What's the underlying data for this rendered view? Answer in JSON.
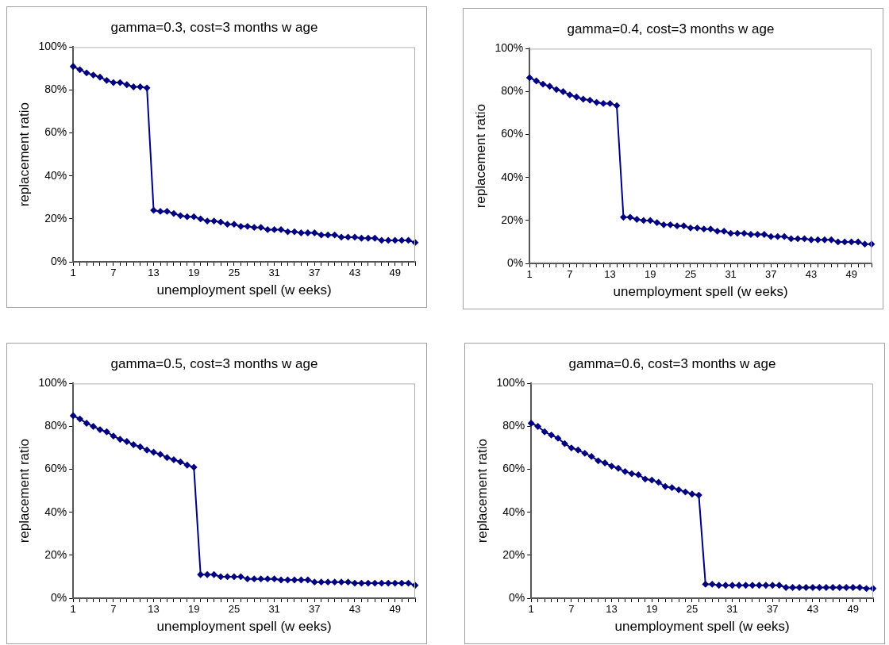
{
  "chart_data": [
    {
      "type": "line",
      "title": "gamma=0.3, cost=3 months w age",
      "xlabel": "unemployment spell (w eeks)",
      "ylabel": "replacement ratio",
      "marker": "diamond",
      "grid": false,
      "legend": false,
      "categories": [
        "1",
        null,
        null,
        null,
        null,
        null,
        "7",
        null,
        null,
        null,
        null,
        null,
        "13",
        null,
        null,
        null,
        null,
        null,
        "19",
        null,
        null,
        null,
        null,
        null,
        "25",
        null,
        null,
        null,
        null,
        null,
        "31",
        null,
        null,
        null,
        null,
        null,
        "37",
        null,
        null,
        null,
        null,
        null,
        "43",
        null,
        null,
        null,
        null,
        null,
        "49",
        null,
        null,
        null
      ],
      "ylim": [
        0,
        100
      ],
      "yticks": [
        {
          "value": 0,
          "label": "0%"
        },
        {
          "value": 20,
          "label": "20%"
        },
        {
          "value": 40,
          "label": "40%"
        },
        {
          "value": 60,
          "label": "60%"
        },
        {
          "value": 80,
          "label": "80%"
        },
        {
          "value": 100,
          "label": "100%"
        }
      ],
      "series": [
        {
          "color": "#000080",
          "values": [
            91,
            89.5,
            88,
            87,
            86,
            84.5,
            83.5,
            83.5,
            82.5,
            81.5,
            81.5,
            81,
            24,
            23.5,
            23.5,
            22.5,
            21.5,
            21,
            21,
            20,
            19,
            19,
            18.5,
            17.5,
            17.5,
            16.5,
            16.5,
            16,
            16,
            15,
            15,
            15,
            14,
            14,
            13.5,
            13.5,
            13.5,
            12.5,
            12.5,
            12.5,
            11.5,
            11.5,
            11.5,
            11,
            11,
            11,
            10,
            10,
            10,
            10,
            10,
            9
          ]
        }
      ]
    },
    {
      "type": "line",
      "title": "gamma=0.4, cost=3 months w age",
      "xlabel": "unemployment spell (w eeks)",
      "ylabel": "replacement ratio",
      "marker": "diamond",
      "grid": false,
      "legend": false,
      "categories": [
        "1",
        null,
        null,
        null,
        null,
        null,
        "7",
        null,
        null,
        null,
        null,
        null,
        "13",
        null,
        null,
        null,
        null,
        null,
        "19",
        null,
        null,
        null,
        null,
        null,
        "25",
        null,
        null,
        null,
        null,
        null,
        "31",
        null,
        null,
        null,
        null,
        null,
        "37",
        null,
        null,
        null,
        null,
        null,
        "43",
        null,
        null,
        null,
        null,
        null,
        "49",
        null,
        null,
        null
      ],
      "ylim": [
        0,
        100
      ],
      "yticks": [
        {
          "value": 0,
          "label": "0%"
        },
        {
          "value": 20,
          "label": "20%"
        },
        {
          "value": 40,
          "label": "40%"
        },
        {
          "value": 60,
          "label": "60%"
        },
        {
          "value": 80,
          "label": "80%"
        },
        {
          "value": 100,
          "label": "100%"
        }
      ],
      "series": [
        {
          "color": "#000080",
          "values": [
            86.5,
            85,
            83.5,
            82.5,
            81,
            80,
            78.5,
            77.5,
            76.5,
            76,
            75,
            74.5,
            74.5,
            73.5,
            21.5,
            21.5,
            20.5,
            20,
            20,
            19,
            18,
            18,
            17.5,
            17.5,
            16.5,
            16.5,
            16,
            16,
            15,
            15,
            14,
            14,
            14,
            13.5,
            13.5,
            13.5,
            12.5,
            12.5,
            12.5,
            11.5,
            11.5,
            11.5,
            11,
            11,
            11,
            11,
            10,
            10,
            10,
            10,
            9,
            9
          ]
        }
      ]
    },
    {
      "type": "line",
      "title": "gamma=0.5, cost=3 months w age",
      "xlabel": "unemployment spell (w eeks)",
      "ylabel": "replacement ratio",
      "marker": "diamond",
      "grid": false,
      "legend": false,
      "categories": [
        "1",
        null,
        null,
        null,
        null,
        null,
        "7",
        null,
        null,
        null,
        null,
        null,
        "13",
        null,
        null,
        null,
        null,
        null,
        "19",
        null,
        null,
        null,
        null,
        null,
        "25",
        null,
        null,
        null,
        null,
        null,
        "31",
        null,
        null,
        null,
        null,
        null,
        "37",
        null,
        null,
        null,
        null,
        null,
        "43",
        null,
        null,
        null,
        null,
        null,
        "49",
        null,
        null,
        null
      ],
      "ylim": [
        0,
        100
      ],
      "yticks": [
        {
          "value": 0,
          "label": "0%"
        },
        {
          "value": 20,
          "label": "20%"
        },
        {
          "value": 40,
          "label": "40%"
        },
        {
          "value": 60,
          "label": "60%"
        },
        {
          "value": 80,
          "label": "80%"
        },
        {
          "value": 100,
          "label": "100%"
        }
      ],
      "series": [
        {
          "color": "#000080",
          "values": [
            85,
            83.5,
            81.5,
            80,
            78.5,
            77.5,
            75.5,
            74,
            73,
            71.5,
            70.5,
            69,
            68,
            67,
            65.5,
            64.5,
            63.5,
            62,
            61,
            11,
            11,
            11,
            10,
            10,
            10,
            10,
            9,
            9,
            9,
            9,
            9,
            8.5,
            8.5,
            8.5,
            8.5,
            8.5,
            7.5,
            7.5,
            7.5,
            7.5,
            7.5,
            7.5,
            7,
            7,
            7,
            7,
            7,
            7,
            7,
            7,
            7,
            6
          ]
        }
      ]
    },
    {
      "type": "line",
      "title": "gamma=0.6, cost=3 months w age",
      "xlabel": "unemployment spell (w eeks)",
      "ylabel": "replacement ratio",
      "marker": "diamond",
      "grid": false,
      "legend": false,
      "categories": [
        "1",
        null,
        null,
        null,
        null,
        null,
        "7",
        null,
        null,
        null,
        null,
        null,
        "13",
        null,
        null,
        null,
        null,
        null,
        "19",
        null,
        null,
        null,
        null,
        null,
        "25",
        null,
        null,
        null,
        null,
        null,
        "31",
        null,
        null,
        null,
        null,
        null,
        "37",
        null,
        null,
        null,
        null,
        null,
        "43",
        null,
        null,
        null,
        null,
        null,
        "49",
        null,
        null,
        null
      ],
      "ylim": [
        0,
        100
      ],
      "yticks": [
        {
          "value": 0,
          "label": "0%"
        },
        {
          "value": 20,
          "label": "20%"
        },
        {
          "value": 40,
          "label": "40%"
        },
        {
          "value": 60,
          "label": "60%"
        },
        {
          "value": 80,
          "label": "80%"
        },
        {
          "value": 100,
          "label": "100%"
        }
      ],
      "series": [
        {
          "color": "#000080",
          "values": [
            81.5,
            80,
            77.5,
            76,
            74.5,
            72,
            70,
            69,
            67.5,
            66,
            64,
            63,
            61.5,
            60.5,
            59,
            58,
            57.5,
            55.5,
            55,
            54,
            52,
            51.5,
            50.5,
            49.5,
            48.5,
            48,
            6.5,
            6.5,
            6,
            6,
            6,
            6,
            6,
            6,
            6,
            6,
            6,
            6,
            5,
            5,
            5,
            5,
            5,
            5,
            5,
            5,
            5,
            5,
            5,
            5,
            4.5,
            4.5
          ]
        }
      ]
    }
  ]
}
